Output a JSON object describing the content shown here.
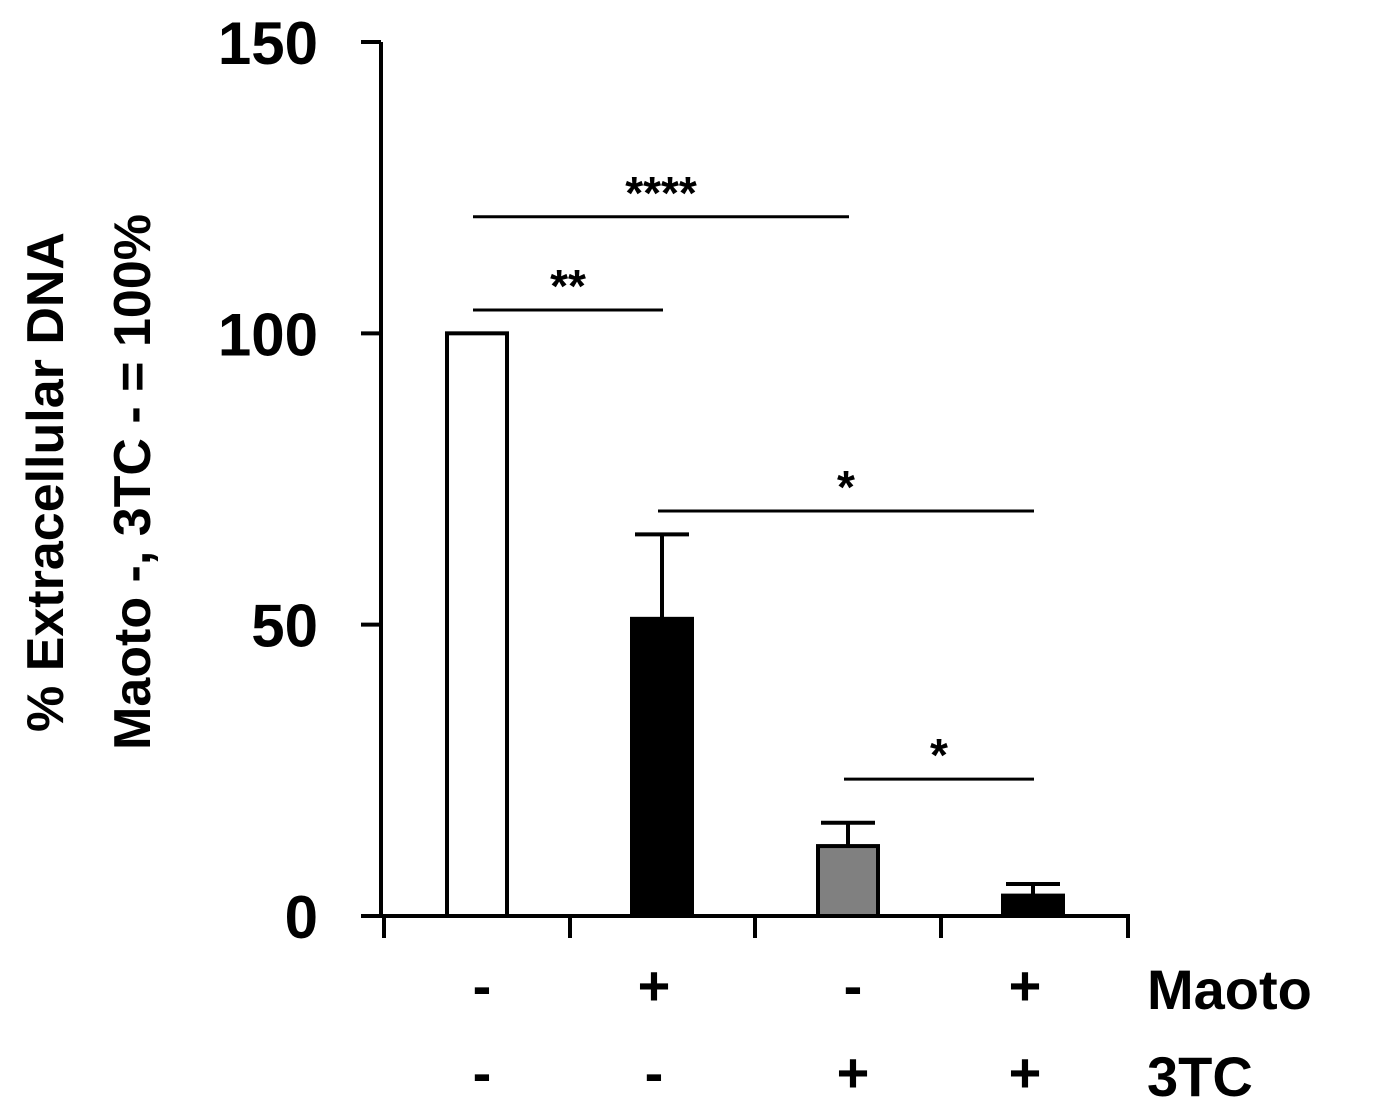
{
  "chart_data": {
    "type": "bar",
    "ylabel_lines": [
      "% Extracellular DNA",
      "Maoto -, 3TC - = 100%"
    ],
    "xlabel": "",
    "ylim": [
      0,
      150
    ],
    "yticks": [
      "0",
      "50",
      "100",
      "150"
    ],
    "categories": [
      "Maoto - / 3TC -",
      "Maoto + / 3TC -",
      "Maoto - / 3TC +",
      "Maoto + / 3TC +"
    ],
    "values": [
      100,
      51,
      12,
      3.5
    ],
    "error_upper": [
      100,
      65.5,
      16,
      5.5
    ],
    "bar_colors": [
      "#ffffff",
      "#000000",
      "#808080",
      "#000000"
    ],
    "grid": false,
    "conditions": [
      {
        "name": "Maoto",
        "signs": [
          "-",
          "+",
          "-",
          "+"
        ]
      },
      {
        "name": "3TC",
        "signs": [
          "-",
          "-",
          "+",
          "+"
        ]
      }
    ],
    "significance": [
      {
        "from": 0,
        "to": 2,
        "level": 120,
        "label": "****"
      },
      {
        "from": 0,
        "to": 1,
        "level": 104,
        "label": "**"
      },
      {
        "from": 1,
        "to": 3,
        "level": 69.5,
        "label": "*"
      },
      {
        "from": 2,
        "to": 3,
        "level": 23.5,
        "label": "*"
      }
    ]
  }
}
